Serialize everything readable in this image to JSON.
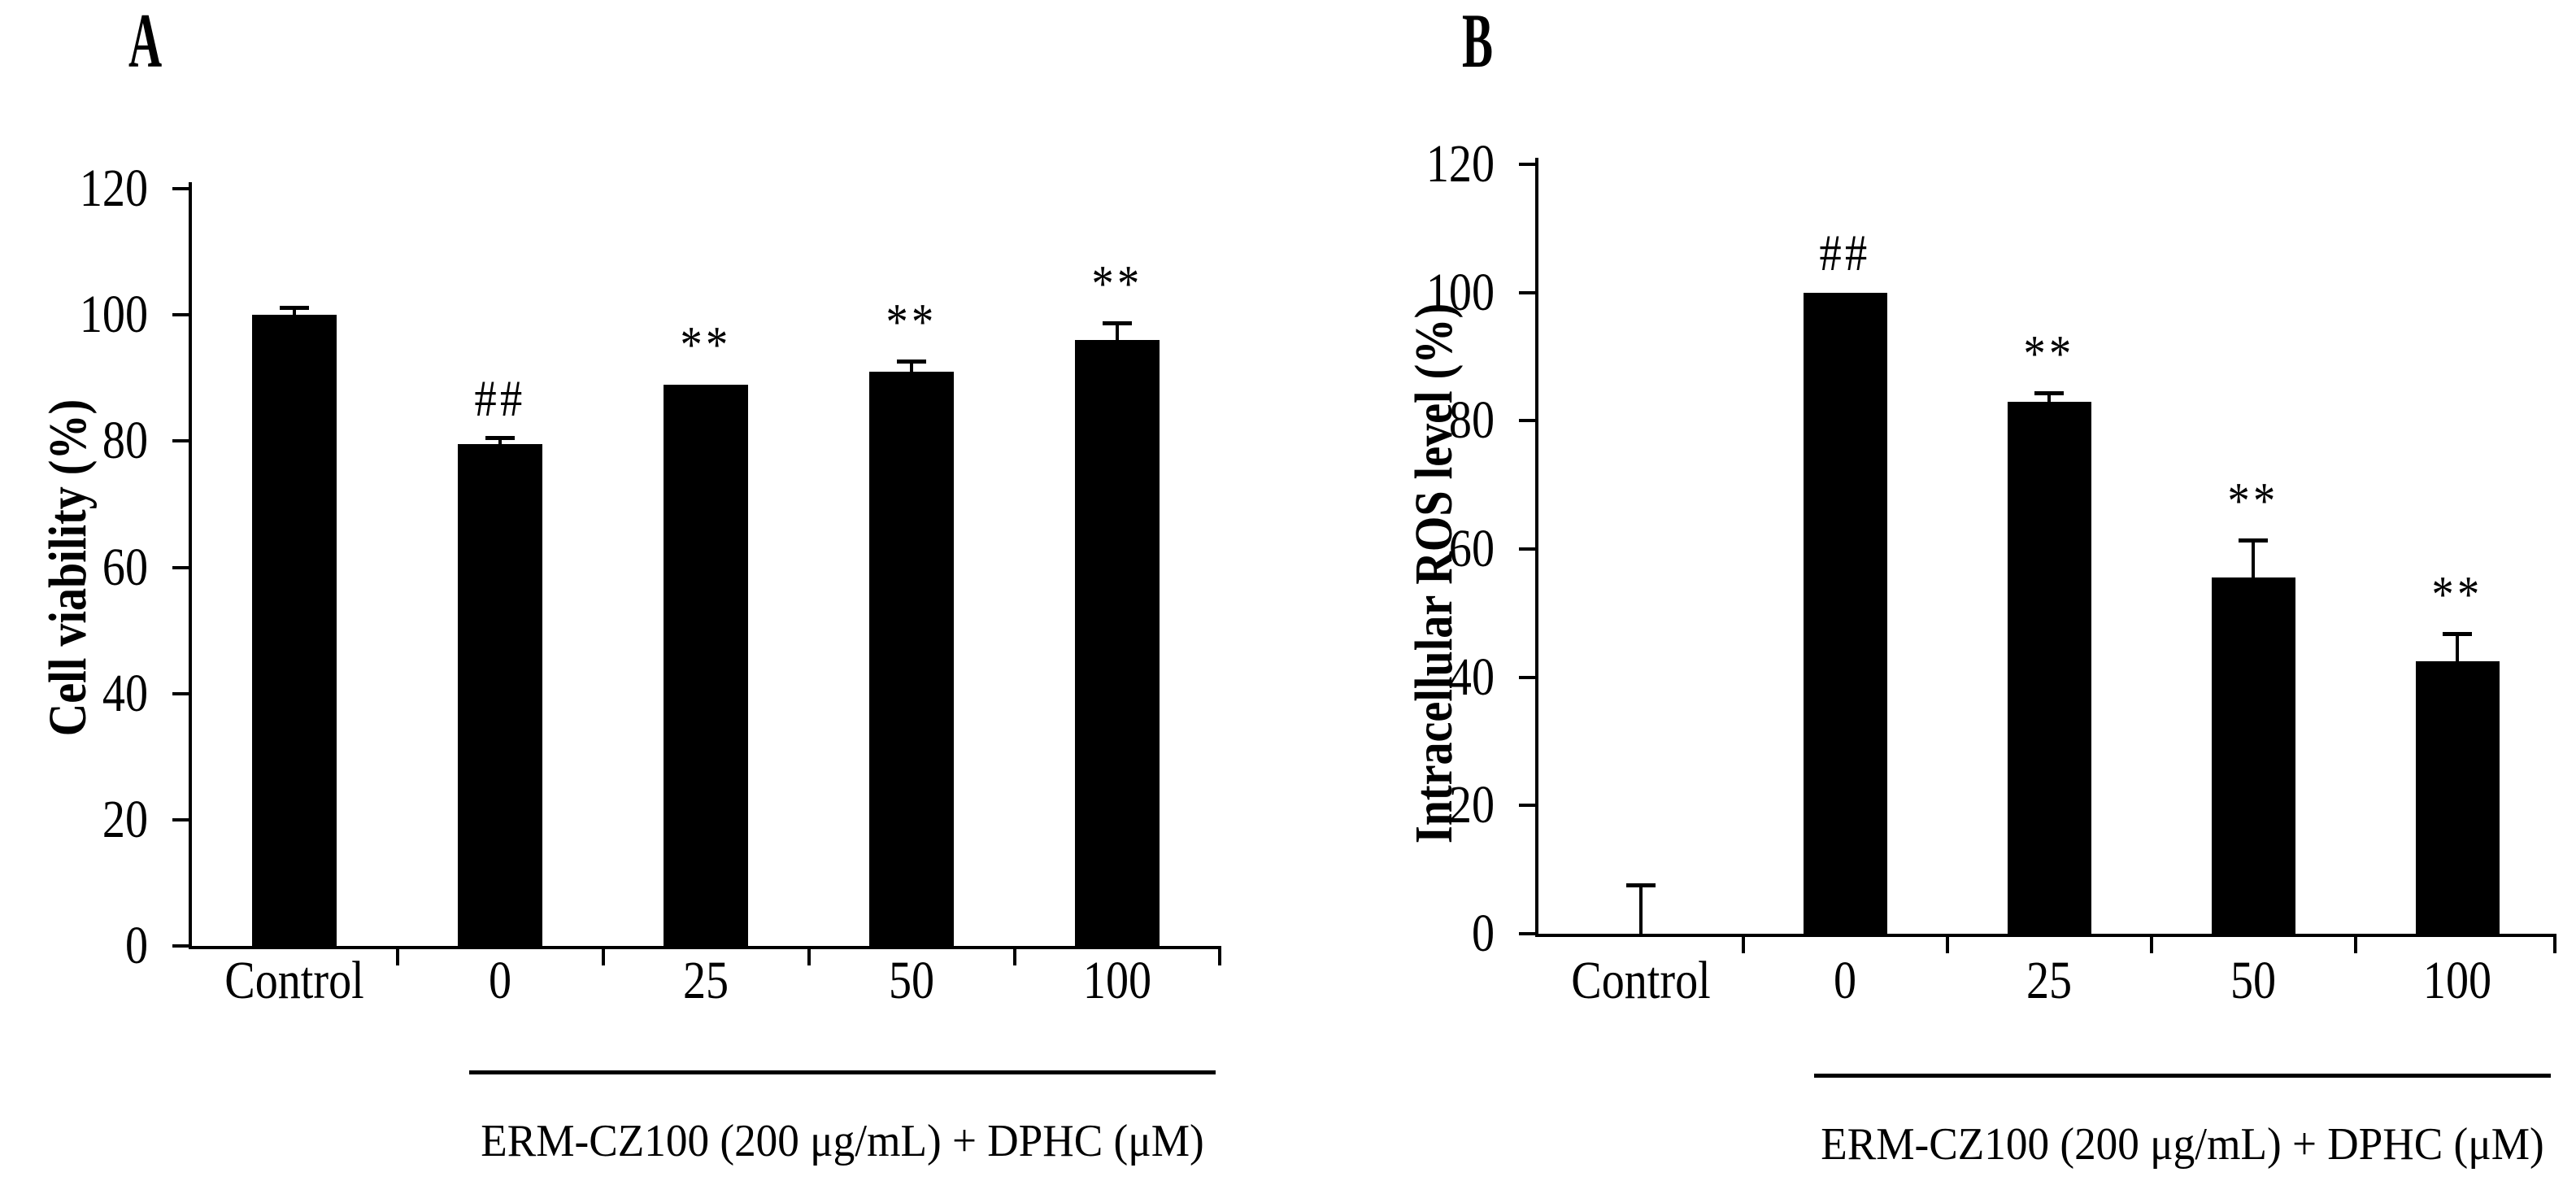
{
  "background_color": "#ffffff",
  "ink_color": "#000000",
  "chart_data": [
    {
      "type": "bar",
      "panel_label": "A",
      "ylabel": "Cell viability (%)",
      "xlabel": "",
      "categories": [
        "Control",
        "0",
        "25",
        "50",
        "100"
      ],
      "values": [
        100,
        79.5,
        89,
        91,
        96
      ],
      "errors_plus": [
        1,
        0.9,
        0,
        1.6,
        2.6
      ],
      "annotations": [
        "",
        "##",
        "**",
        "**",
        "**"
      ],
      "ylim": [
        0,
        120
      ],
      "ytick_step": 20,
      "ytick_labels": [
        "0",
        "20",
        "40",
        "60",
        "80",
        "100",
        "120"
      ],
      "bar_color": "#000000",
      "grid": false,
      "legend": false,
      "group_label": "ERM-CZ100 (200  μg/mL) + DPHC (μM)",
      "group_span_categories": [
        "0",
        "100"
      ]
    },
    {
      "type": "bar",
      "panel_label": "B",
      "ylabel": "Intracellular ROS level (%)",
      "xlabel": "",
      "categories": [
        "Control",
        "0",
        "25",
        "50",
        "100"
      ],
      "values": [
        0,
        100,
        83,
        55.5,
        42.5
      ],
      "errors_plus": [
        7.5,
        0,
        1.2,
        5.8,
        4.2
      ],
      "annotations": [
        "",
        "##",
        "**",
        "**",
        "**"
      ],
      "ylim": [
        0,
        120
      ],
      "ytick_step": 20,
      "ytick_labels": [
        "0",
        "20",
        "40",
        "60",
        "80",
        "100",
        "120"
      ],
      "bar_color": "#000000",
      "grid": false,
      "legend": false,
      "group_label": "ERM-CZ100 (200  μg/mL) + DPHC (μM)",
      "group_span_categories": [
        "0",
        "100"
      ]
    }
  ]
}
